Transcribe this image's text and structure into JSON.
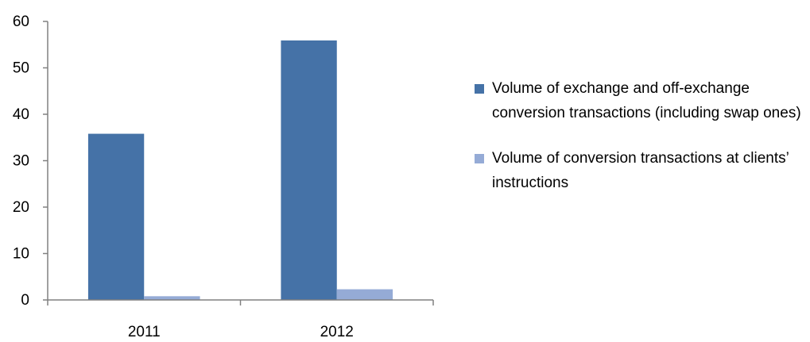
{
  "chart_data": {
    "type": "bar",
    "categories": [
      "2011",
      "2012"
    ],
    "series": [
      {
        "name": "Volume of exchange and off-exchange conversion transactions (including swap ones)",
        "color": "#4572A7",
        "values": [
          35.8,
          55.9
        ]
      },
      {
        "name": "Volume of conversion transactions at clients’ instructions",
        "color": "#95ABD6",
        "values": [
          0.8,
          2.3
        ]
      }
    ],
    "yticks": [
      0,
      10,
      20,
      30,
      40,
      50,
      60
    ],
    "ylim": [
      0,
      60
    ],
    "grid": false,
    "legend_position": "right",
    "title": "",
    "xlabel": "",
    "ylabel": ""
  }
}
